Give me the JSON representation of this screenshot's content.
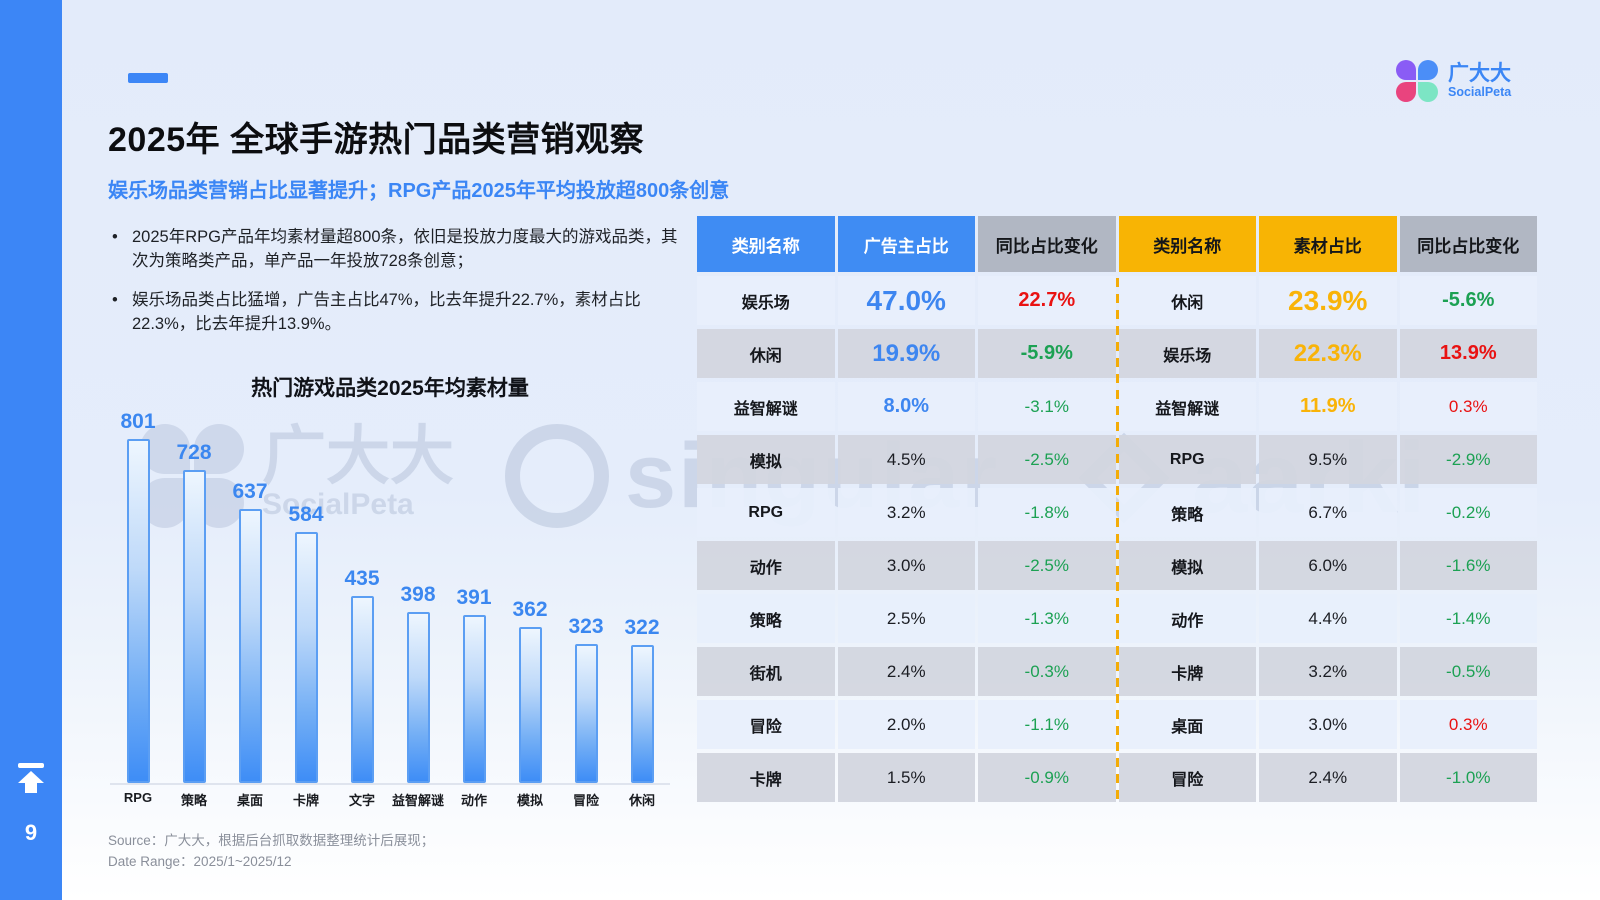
{
  "page": {
    "number": "9",
    "accent_color": "#3c86f6",
    "background_color": "#e4ecfa"
  },
  "logo": {
    "title": "广大大",
    "subtitle": "SocialPeta"
  },
  "header": {
    "title": "2025年 全球手游热门品类营销观察",
    "subtitle": "娱乐场品类营销占比显著提升；RPG产品2025年平均投放超800条创意"
  },
  "bullets": [
    "2025年RPG产品年均素材量超800条，依旧是投放力度最大的游戏品类，其次为策略类产品，单产品一年投放728条创意；",
    "娱乐场品类占比猛增，广告主占比47%，比去年提升22.7%，素材占比22.3%，比去年提升13.9%。"
  ],
  "chart_data": {
    "type": "bar",
    "title": "热门游戏品类2025年均素材量",
    "categories": [
      "RPG",
      "策略",
      "桌面",
      "卡牌",
      "文字",
      "益智解谜",
      "动作",
      "模拟",
      "冒险",
      "休闲"
    ],
    "values": [
      801,
      728,
      637,
      584,
      435,
      398,
      391,
      362,
      323,
      322
    ],
    "xlabel": "",
    "ylabel": "",
    "ylim": [
      0,
      850
    ],
    "grid": false,
    "legend": "none",
    "bar_color_top": "#eef6fe",
    "bar_color_bottom": "#3e8df6",
    "value_label_color": "#3b87f0"
  },
  "table": {
    "left": {
      "headers": [
        "类别名称",
        "广告主占比",
        "同比占比变化"
      ],
      "header_colors": {
        "name": "#3f8cf3",
        "value": "#3f8cf3",
        "change": "#b1b7c3"
      },
      "rows": [
        {
          "name": "娱乐场",
          "value": "47.0%",
          "change": "22.7%",
          "trend": "up"
        },
        {
          "name": "休闲",
          "value": "19.9%",
          "change": "-5.9%",
          "trend": "down"
        },
        {
          "name": "益智解谜",
          "value": "8.0%",
          "change": "-3.1%",
          "trend": "down"
        },
        {
          "name": "模拟",
          "value": "4.5%",
          "change": "-2.5%",
          "trend": "down"
        },
        {
          "name": "RPG",
          "value": "3.2%",
          "change": "-1.8%",
          "trend": "down"
        },
        {
          "name": "动作",
          "value": "3.0%",
          "change": "-2.5%",
          "trend": "down"
        },
        {
          "name": "策略",
          "value": "2.5%",
          "change": "-1.3%",
          "trend": "down"
        },
        {
          "name": "街机",
          "value": "2.4%",
          "change": "-0.3%",
          "trend": "down"
        },
        {
          "name": "冒险",
          "value": "2.0%",
          "change": "-1.1%",
          "trend": "down"
        },
        {
          "name": "卡牌",
          "value": "1.5%",
          "change": "-0.9%",
          "trend": "down"
        }
      ]
    },
    "right": {
      "headers": [
        "类别名称",
        "素材占比",
        "同比占比变化"
      ],
      "header_colors": {
        "name": "#f8b404",
        "value": "#f8b404",
        "change": "#b1b7c3"
      },
      "rows": [
        {
          "name": "休闲",
          "value": "23.9%",
          "change": "-5.6%",
          "trend": "down"
        },
        {
          "name": "娱乐场",
          "value": "22.3%",
          "change": "13.9%",
          "trend": "up"
        },
        {
          "name": "益智解谜",
          "value": "11.9%",
          "change": "0.3%",
          "trend": "up"
        },
        {
          "name": "RPG",
          "value": "9.5%",
          "change": "-2.9%",
          "trend": "down"
        },
        {
          "name": "策略",
          "value": "6.7%",
          "change": "-0.2%",
          "trend": "down"
        },
        {
          "name": "模拟",
          "value": "6.0%",
          "change": "-1.6%",
          "trend": "down"
        },
        {
          "name": "动作",
          "value": "4.4%",
          "change": "-1.4%",
          "trend": "down"
        },
        {
          "name": "卡牌",
          "value": "3.2%",
          "change": "-0.5%",
          "trend": "down"
        },
        {
          "name": "桌面",
          "value": "3.0%",
          "change": "0.3%",
          "trend": "up"
        },
        {
          "name": "冒险",
          "value": "2.4%",
          "change": "-1.0%",
          "trend": "down"
        }
      ]
    },
    "colors": {
      "positive": "#e91212",
      "negative": "#1ca153",
      "value_blue": "#3e86f0",
      "value_yellow": "#f9b308"
    }
  },
  "watermarks": {
    "socialpeta": {
      "title": "广大大",
      "subtitle": "SocialPeta"
    },
    "singular": "singular",
    "aarki": "aarki"
  },
  "footer": {
    "source": "Source：广大大，根据后台抓取数据整理统计后展现；",
    "date_range": "Date Range：2025/1~2025/12"
  }
}
